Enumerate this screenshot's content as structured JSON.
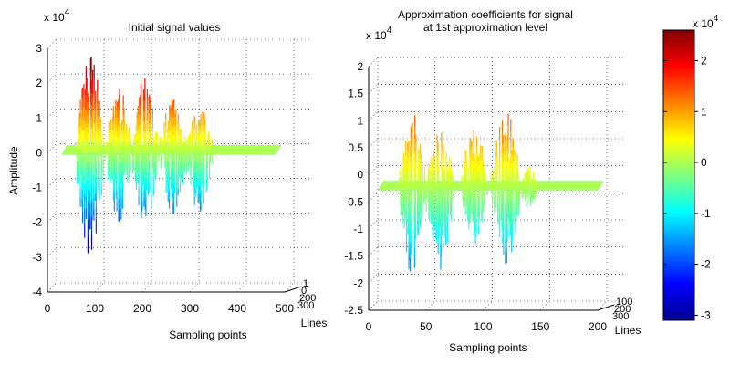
{
  "chart_data": [
    {
      "type": "line",
      "title": "Initial signal values",
      "xlabel": "Sampling points",
      "ylabel": "Amplitude",
      "zlabel": "Lines",
      "exponent_label": "x 10",
      "exponent_power": "4",
      "xlim": [
        0,
        500
      ],
      "ylim": [
        -40000,
        30000
      ],
      "x_ticks": [
        "0",
        "100",
        "200",
        "300",
        "400",
        "500"
      ],
      "y_ticks": [
        "-4",
        "-3",
        "-2",
        "-1",
        "0",
        "1",
        "2",
        "3"
      ],
      "depth_ticks": [
        "1",
        "0",
        "200",
        "300"
      ],
      "grid": true,
      "signal_start": 30,
      "signal_end": 480,
      "bursts": [
        {
          "center": 90,
          "width": 55,
          "max": 29000,
          "min": -32000
        },
        {
          "center": 150,
          "width": 50,
          "max": 19000,
          "min": -21000
        },
        {
          "center": 205,
          "width": 50,
          "max": 22000,
          "min": -22000
        },
        {
          "center": 265,
          "width": 55,
          "max": 17000,
          "min": -20000
        },
        {
          "center": 320,
          "width": 50,
          "max": 15000,
          "min": -19000
        }
      ]
    },
    {
      "type": "line",
      "title": "Approximation coefficients for signal",
      "subtitle": "at 1st approximation level",
      "xlabel": "Sampling points",
      "ylabel": "",
      "zlabel": "Lines",
      "exponent_label": "x 10",
      "exponent_power": "4",
      "xlim": [
        0,
        250
      ],
      "ylim": [
        -25000,
        25000
      ],
      "x_ticks": [
        "0",
        "50",
        "100",
        "150",
        "200"
      ],
      "y_ticks": [
        "-2.5",
        "-2",
        "-1.5",
        "-1",
        "-0.5",
        "0",
        "0.5",
        "1",
        "1.5",
        "2"
      ],
      "depth_ticks": [
        "100",
        "200",
        "300"
      ],
      "grid": true,
      "signal_start": 10,
      "signal_end": 250,
      "bursts": [
        {
          "center": 48,
          "width": 28,
          "max": 16000,
          "min": -18500
        },
        {
          "center": 78,
          "width": 28,
          "max": 12000,
          "min": -17000
        },
        {
          "center": 115,
          "width": 26,
          "max": 14500,
          "min": -12000
        },
        {
          "center": 150,
          "width": 30,
          "max": 16500,
          "min": -16500
        },
        {
          "center": 175,
          "width": 18,
          "max": 5000,
          "min": -4000
        }
      ]
    }
  ],
  "colorbar": {
    "exponent_label": "x 10",
    "exponent_power": "4",
    "range": [
      -31000,
      26000
    ],
    "tick_values": [
      2,
      1,
      0,
      -1,
      -2,
      -3
    ],
    "tick_labels": [
      "2",
      "1",
      "0",
      "-1",
      "-2",
      "-3"
    ],
    "colormap": "jet"
  }
}
